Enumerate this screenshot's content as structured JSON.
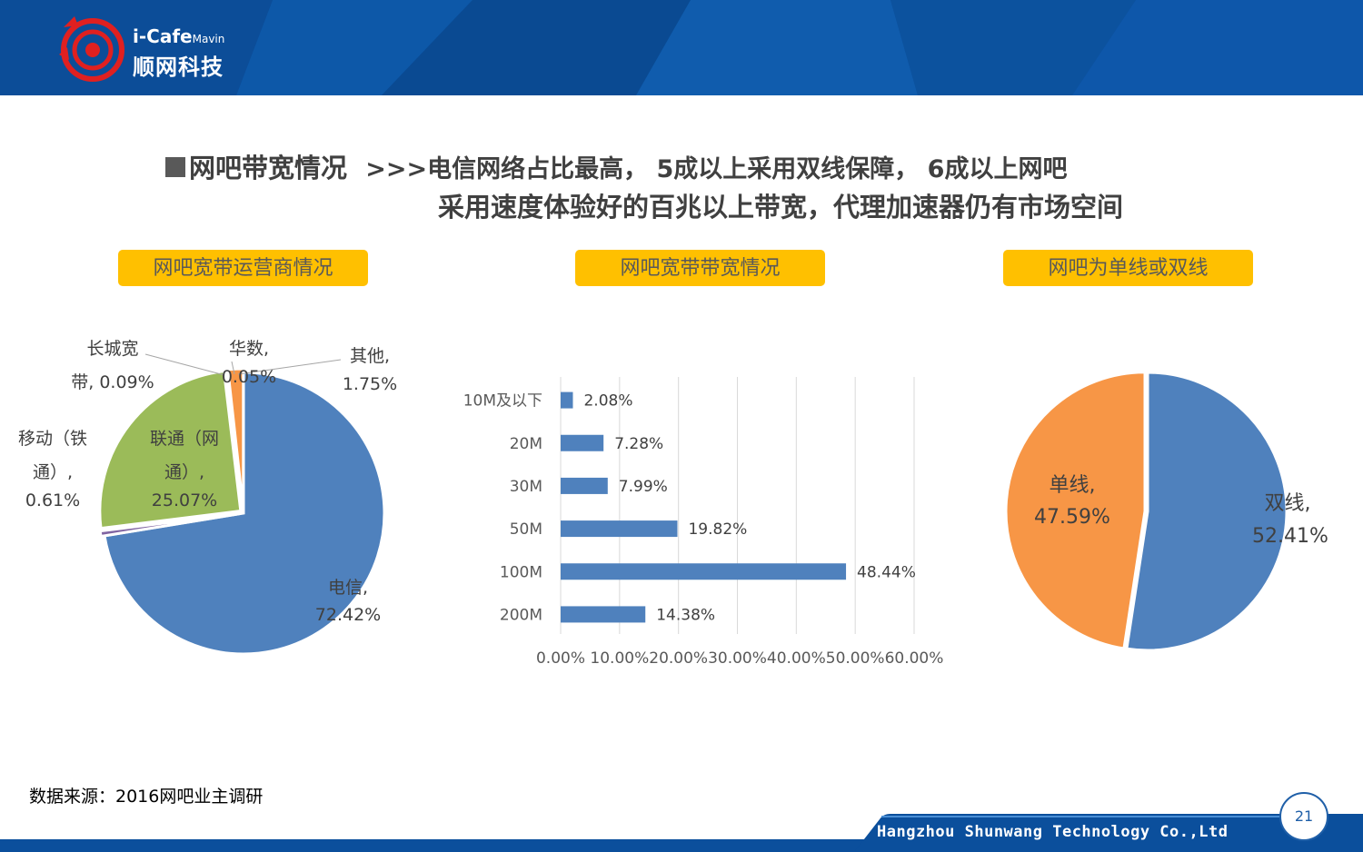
{
  "header": {
    "logo_en": "i-Cafe",
    "logo_sub": "Mavin",
    "logo_cn": "顺网科技"
  },
  "title": {
    "marker_text": "网吧带宽情况",
    "line1": ">>>电信网络占比最高， 5成以上采用双线保障， 6成以上网吧",
    "line2": "采用速度体验好的百兆以上带宽，代理加速器仍有市场空间"
  },
  "colors": {
    "header_blue": "#0b4f9c",
    "pill_yellow": "#ffc000",
    "blue": "#4f81bd",
    "green": "#9bbb59",
    "orange": "#f79646"
  },
  "chart_data": [
    {
      "type": "pie",
      "title": "网吧宽带运营商情况",
      "slices": [
        {
          "label": "电信",
          "value": 72.42,
          "value_label": "72.42%",
          "color": "#4f81bd"
        },
        {
          "label": "移动（铁通）",
          "value": 0.61,
          "value_label": "0.61%",
          "color": "#8064a2"
        },
        {
          "label": "联通（网通）",
          "value": 25.07,
          "value_label": "25.07%",
          "color": "#9bbb59"
        },
        {
          "label": "长城宽带",
          "value": 0.09,
          "value_label": "0.09%",
          "color": "#4bacc6"
        },
        {
          "label": "华数",
          "value": 0.05,
          "value_label": "0.05%",
          "color": "#c0504d"
        },
        {
          "label": "其他",
          "value": 1.75,
          "value_label": "1.75%",
          "color": "#f79646"
        }
      ],
      "label_lines": {
        "tel_name": "电信,",
        "tel_val": "72.42%",
        "uni_l1": "联通（网",
        "uni_l2": "通）,",
        "uni_val": "25.07%",
        "mob_l1": "移动（铁",
        "mob_l2": "通）,",
        "mob_val": "0.61%",
        "gw_l1": "长城宽",
        "gw_l2": "带, 0.09%",
        "hs_name": "华数,",
        "hs_val": "0.05%",
        "oth_name": "其他,",
        "oth_val": "1.75%"
      }
    },
    {
      "type": "bar",
      "orientation": "horizontal",
      "title": "网吧宽带带宽情况",
      "categories": [
        "10M及以下",
        "20M",
        "30M",
        "50M",
        "100M",
        "200M"
      ],
      "values": [
        2.08,
        7.28,
        7.99,
        19.82,
        48.44,
        14.38
      ],
      "value_labels": [
        "2.08%",
        "7.28%",
        "7.99%",
        "19.82%",
        "48.44%",
        "14.38%"
      ],
      "xlim": [
        0,
        60
      ],
      "x_ticks": [
        "0.00%",
        "10.00%",
        "20.00%",
        "30.00%",
        "40.00%",
        "50.00%",
        "60.00%"
      ],
      "grid": "vertical",
      "color": "#4f81bd"
    },
    {
      "type": "pie",
      "title": "网吧为单线或双线",
      "slices": [
        {
          "label": "双线",
          "value": 52.41,
          "value_label": "52.41%",
          "color": "#4f81bd"
        },
        {
          "label": "单线",
          "value": 47.59,
          "value_label": "47.59%",
          "color": "#f79646"
        }
      ],
      "label_lines": {
        "dual_name": "双线,",
        "dual_val": "52.41%",
        "single_name": "单线,",
        "single_val": "47.59%"
      }
    }
  ],
  "source": "数据来源：2016网吧业主调研",
  "footer": {
    "company": "Hangzhou Shunwang Technology Co.,Ltd",
    "page_number": "21"
  }
}
